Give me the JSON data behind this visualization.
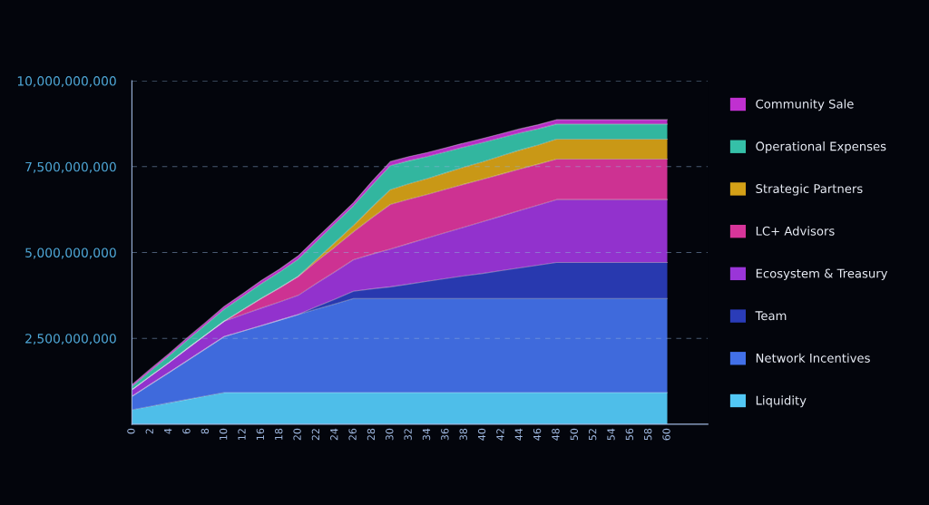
{
  "chart_data": {
    "type": "area",
    "stacked": true,
    "categories": [
      "0",
      "2",
      "4",
      "6",
      "8",
      "10",
      "12",
      "16",
      "18",
      "20",
      "22",
      "24",
      "26",
      "28",
      "30",
      "32",
      "34",
      "36",
      "38",
      "40",
      "42",
      "44",
      "46",
      "48",
      "50",
      "52",
      "54",
      "56",
      "58",
      "60"
    ],
    "series": [
      {
        "name": "Liquidity",
        "color": "#52c8f5",
        "values": [
          420000000,
          520000000,
          620000000,
          720000000,
          820000000,
          920000000,
          920000000,
          920000000,
          920000000,
          920000000,
          920000000,
          920000000,
          920000000,
          920000000,
          920000000,
          920000000,
          920000000,
          920000000,
          920000000,
          920000000,
          920000000,
          920000000,
          920000000,
          920000000,
          920000000,
          920000000,
          920000000,
          920000000,
          920000000,
          920000000
        ]
      },
      {
        "name": "Network Incentives",
        "color": "#4270e8",
        "values": [
          390000000,
          640000000,
          880000000,
          1130000000,
          1380000000,
          1630000000,
          1790000000,
          1950000000,
          2110000000,
          2270000000,
          2430000000,
          2580000000,
          2740000000,
          2740000000,
          2740000000,
          2740000000,
          2740000000,
          2740000000,
          2740000000,
          2740000000,
          2740000000,
          2740000000,
          2740000000,
          2740000000,
          2740000000,
          2740000000,
          2740000000,
          2740000000,
          2740000000,
          2740000000
        ]
      },
      {
        "name": "Team",
        "color": "#2a3cb8",
        "values": [
          0,
          0,
          0,
          0,
          0,
          0,
          0,
          0,
          0,
          0,
          70000000,
          140000000,
          210000000,
          280000000,
          340000000,
          420000000,
          500000000,
          580000000,
          660000000,
          730000000,
          810000000,
          890000000,
          970000000,
          1050000000,
          1050000000,
          1050000000,
          1050000000,
          1050000000,
          1050000000,
          1050000000
        ]
      },
      {
        "name": "Ecosystem & Treasury",
        "color": "#9a35d8",
        "values": [
          190000000,
          240000000,
          290000000,
          350000000,
          400000000,
          450000000,
          480000000,
          510000000,
          530000000,
          560000000,
          680000000,
          800000000,
          920000000,
          1010000000,
          1100000000,
          1180000000,
          1260000000,
          1340000000,
          1420000000,
          1510000000,
          1590000000,
          1670000000,
          1750000000,
          1830000000,
          1830000000,
          1830000000,
          1830000000,
          1830000000,
          1830000000,
          1830000000
        ]
      },
      {
        "name": "LC+ Advisors",
        "color": "#d8359a",
        "values": [
          0,
          0,
          0,
          0,
          0,
          0,
          140000000,
          280000000,
          410000000,
          550000000,
          640000000,
          720000000,
          810000000,
          1060000000,
          1300000000,
          1290000000,
          1270000000,
          1260000000,
          1250000000,
          1230000000,
          1220000000,
          1210000000,
          1190000000,
          1180000000,
          1180000000,
          1180000000,
          1180000000,
          1180000000,
          1180000000,
          1180000000
        ]
      },
      {
        "name": "Strategic Partners",
        "color": "#d4a017",
        "values": [
          0,
          0,
          0,
          0,
          0,
          0,
          0,
          0,
          0,
          0,
          60000000,
          130000000,
          190000000,
          310000000,
          430000000,
          450000000,
          460000000,
          480000000,
          500000000,
          510000000,
          530000000,
          550000000,
          560000000,
          580000000,
          580000000,
          580000000,
          580000000,
          580000000,
          580000000,
          580000000
        ]
      },
      {
        "name": "Operational Expenses",
        "color": "#35c0a8",
        "values": [
          100000000,
          150000000,
          200000000,
          250000000,
          300000000,
          350000000,
          390000000,
          430000000,
          460000000,
          500000000,
          520000000,
          550000000,
          570000000,
          640000000,
          700000000,
          670000000,
          640000000,
          610000000,
          580000000,
          560000000,
          530000000,
          500000000,
          470000000,
          440000000,
          440000000,
          440000000,
          440000000,
          440000000,
          440000000,
          440000000
        ]
      },
      {
        "name": "Community Sale",
        "color": "#c030d0",
        "values": [
          50000000,
          60000000,
          60000000,
          70000000,
          70000000,
          80000000,
          80000000,
          90000000,
          90000000,
          100000000,
          100000000,
          90000000,
          90000000,
          110000000,
          120000000,
          120000000,
          120000000,
          120000000,
          120000000,
          120000000,
          120000000,
          120000000,
          120000000,
          130000000,
          130000000,
          130000000,
          130000000,
          130000000,
          130000000,
          130000000
        ]
      }
    ],
    "ylim": [
      0,
      10000000000
    ],
    "yticks": [
      {
        "value": 2500000000,
        "label": "2,500,000,000"
      },
      {
        "value": 5000000000,
        "label": "5,000,000,000"
      },
      {
        "value": 7500000000,
        "label": "7,500,000,000"
      },
      {
        "value": 10000000000,
        "label": "10,000,000,000"
      }
    ],
    "grid": "y",
    "legend": "right"
  }
}
